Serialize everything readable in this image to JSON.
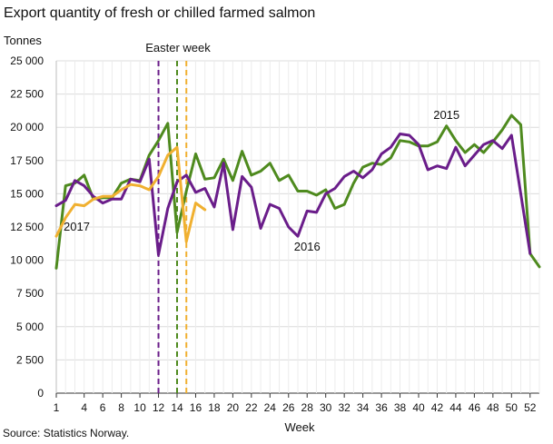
{
  "header": {
    "title": "Export quantity of fresh or chilled farmed salmon"
  },
  "footer": {
    "source": "Source: Statistics Norway."
  },
  "chart_data": {
    "type": "line",
    "title": "Export quantity of fresh or chilled farmed salmon",
    "xlabel": "Week",
    "ylabel": "Tonnes",
    "ylim": [
      0,
      25000
    ],
    "xlim": [
      1,
      53
    ],
    "grid": true,
    "x_ticks": [
      1,
      4,
      6,
      8,
      10,
      12,
      14,
      16,
      18,
      20,
      22,
      24,
      26,
      28,
      30,
      32,
      34,
      36,
      38,
      40,
      42,
      44,
      46,
      48,
      50,
      52
    ],
    "y_ticks": [
      0,
      2500,
      5000,
      7500,
      10000,
      12500,
      15000,
      17500,
      20000,
      22500,
      25000
    ],
    "y_tick_labels": [
      "0",
      "2 500",
      "5 000",
      "7 500",
      "10 000",
      "12 500",
      "15 000",
      "17 500",
      "20 000",
      "22 500",
      "25 000"
    ],
    "series": [
      {
        "name": "2015",
        "color": "#4e8a1e",
        "x": [
          1,
          2,
          3,
          4,
          5,
          6,
          7,
          8,
          9,
          10,
          11,
          12,
          13,
          14,
          15,
          16,
          17,
          18,
          19,
          20,
          21,
          22,
          23,
          24,
          25,
          26,
          27,
          28,
          29,
          30,
          31,
          32,
          33,
          34,
          35,
          36,
          37,
          38,
          39,
          40,
          41,
          42,
          43,
          44,
          45,
          46,
          47,
          48,
          49,
          50,
          51,
          52,
          53
        ],
        "values": [
          9400,
          15600,
          15800,
          16400,
          14600,
          14700,
          14700,
          15800,
          16100,
          16000,
          17900,
          19000,
          20300,
          12100,
          15200,
          18000,
          16100,
          16200,
          17600,
          16000,
          18200,
          16400,
          16700,
          17300,
          16000,
          16400,
          15200,
          15200,
          14900,
          15300,
          13900,
          14200,
          15800,
          17000,
          17300,
          17200,
          17700,
          19000,
          18900,
          18600,
          18600,
          18900,
          20100,
          19000,
          18100,
          18700,
          18100,
          18900,
          19800,
          20900,
          20200,
          10500,
          9500
        ]
      },
      {
        "name": "2016",
        "color": "#6a1d8a",
        "x": [
          1,
          2,
          3,
          4,
          5,
          6,
          7,
          8,
          9,
          10,
          11,
          12,
          13,
          14,
          15,
          16,
          17,
          18,
          19,
          20,
          21,
          22,
          23,
          24,
          25,
          26,
          27,
          28,
          29,
          30,
          31,
          32,
          33,
          34,
          35,
          36,
          37,
          38,
          39,
          40,
          41,
          42,
          43,
          44,
          45,
          46,
          47,
          48,
          49,
          50,
          51,
          52
        ],
        "values": [
          14100,
          14500,
          16000,
          15600,
          14800,
          14300,
          14600,
          14600,
          16100,
          15900,
          17600,
          10400,
          13900,
          15900,
          16400,
          15100,
          15400,
          14000,
          17300,
          12300,
          16300,
          15500,
          12400,
          14200,
          13900,
          12500,
          11800,
          13700,
          13600,
          15000,
          15400,
          16300,
          16700,
          16200,
          16800,
          18000,
          18500,
          19500,
          19400,
          18700,
          16800,
          17100,
          16900,
          18500,
          17100,
          17900,
          18700,
          19000,
          18400,
          19400,
          15000,
          10500
        ]
      },
      {
        "name": "2017",
        "color": "#f0b030",
        "x": [
          1,
          2,
          3,
          4,
          5,
          6,
          7,
          8,
          9,
          10,
          11,
          12,
          13,
          14,
          15,
          16,
          17
        ],
        "values": [
          11800,
          13200,
          14200,
          14100,
          14600,
          14800,
          14800,
          15300,
          15700,
          15600,
          15300,
          16300,
          17900,
          18500,
          11400,
          14300,
          13800
        ]
      }
    ],
    "annotations": [
      {
        "type": "vline",
        "x": 12,
        "color": "#6a1d8a",
        "style": "dashed"
      },
      {
        "type": "vline",
        "x": 14,
        "color": "#4e8a1e",
        "style": "dashed"
      },
      {
        "type": "vline",
        "x": 15,
        "color": "#f0b030",
        "style": "dashed"
      },
      {
        "type": "text",
        "text": "Easter week"
      }
    ]
  }
}
